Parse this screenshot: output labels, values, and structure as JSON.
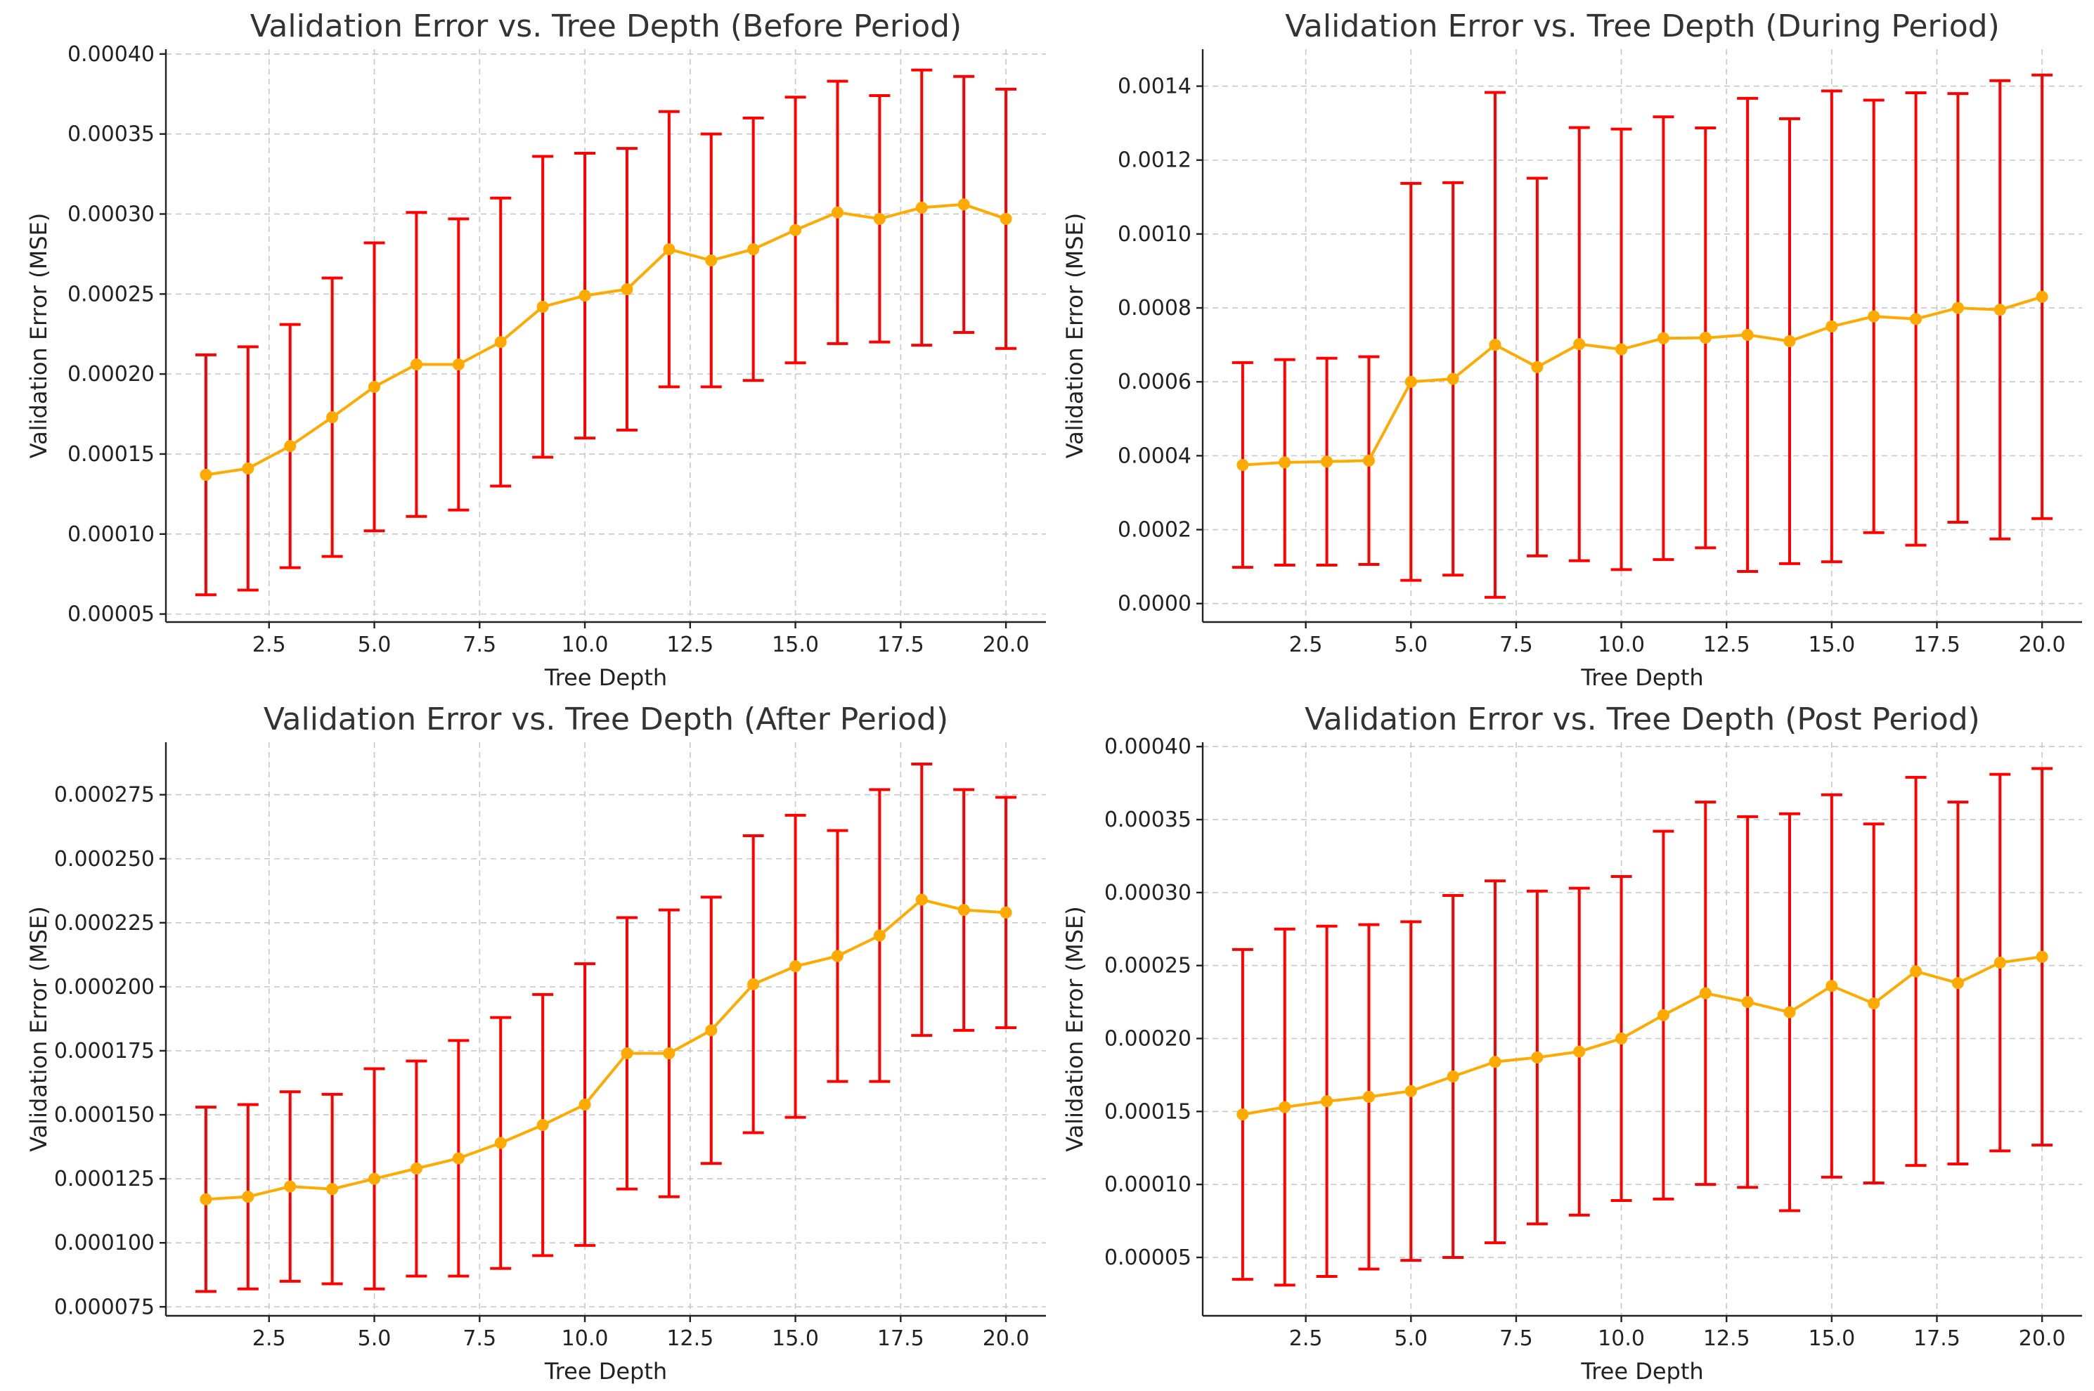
{
  "colors": {
    "line": "#ffaa00",
    "errorbar": "#ff0000",
    "grid": "#c8c8c8",
    "text": "#222222"
  },
  "chart_data": [
    {
      "type": "line",
      "title": "Validation Error vs. Tree Depth (Before Period)",
      "xlabel": "Tree Depth",
      "ylabel": "Validation Error (MSE)",
      "grid": true,
      "xlim": [
        0.05,
        20.95
      ],
      "ylim": [
        4.5e-05,
        0.000403
      ],
      "xticks": [
        2.5,
        5.0,
        7.5,
        10.0,
        12.5,
        15.0,
        17.5,
        20.0
      ],
      "xtick_labels": [
        "2.5",
        "5.0",
        "7.5",
        "10.0",
        "12.5",
        "15.0",
        "17.5",
        "20.0"
      ],
      "yticks": [
        5e-05,
        0.0001,
        0.00015,
        0.0002,
        0.00025,
        0.0003,
        0.00035,
        0.0004
      ],
      "ytick_labels": [
        "0.00005",
        "0.00010",
        "0.00015",
        "0.00020",
        "0.00025",
        "0.00030",
        "0.00035",
        "0.00040"
      ],
      "x": [
        1,
        2,
        3,
        4,
        5,
        6,
        7,
        8,
        9,
        10,
        11,
        12,
        13,
        14,
        15,
        16,
        17,
        18,
        19,
        20
      ],
      "values": [
        0.000137,
        0.000141,
        0.000155,
        0.000173,
        0.000192,
        0.000206,
        0.000206,
        0.00022,
        0.000242,
        0.000249,
        0.000253,
        0.000278,
        0.000271,
        0.000278,
        0.00029,
        0.000301,
        0.000297,
        0.000304,
        0.000306,
        0.000297
      ],
      "errors": [
        7.5e-05,
        7.6e-05,
        7.6e-05,
        8.7e-05,
        9e-05,
        9.5e-05,
        9.1e-05,
        9e-05,
        9.4e-05,
        8.9e-05,
        8.8e-05,
        8.6e-05,
        7.9e-05,
        8.2e-05,
        8.3e-05,
        8.2e-05,
        7.7e-05,
        8.6e-05,
        8e-05,
        8.1e-05
      ]
    },
    {
      "type": "line",
      "title": "Validation Error vs. Tree Depth (During Period)",
      "xlabel": "Tree Depth",
      "ylabel": "Validation Error (MSE)",
      "grid": true,
      "xlim": [
        0.05,
        20.95
      ],
      "ylim": [
        -5e-05,
        0.0015
      ],
      "xticks": [
        2.5,
        5.0,
        7.5,
        10.0,
        12.5,
        15.0,
        17.5,
        20.0
      ],
      "xtick_labels": [
        "2.5",
        "5.0",
        "7.5",
        "10.0",
        "12.5",
        "15.0",
        "17.5",
        "20.0"
      ],
      "yticks": [
        0.0,
        0.0002,
        0.0004,
        0.0006,
        0.0008,
        0.001,
        0.0012,
        0.0014
      ],
      "ytick_labels": [
        "0.0000",
        "0.0002",
        "0.0004",
        "0.0006",
        "0.0008",
        "0.0010",
        "0.0012",
        "0.0014"
      ],
      "x": [
        1,
        2,
        3,
        4,
        5,
        6,
        7,
        8,
        9,
        10,
        11,
        12,
        13,
        14,
        15,
        16,
        17,
        18,
        19,
        20
      ],
      "values": [
        0.000375,
        0.000382,
        0.000384,
        0.000387,
        0.0006,
        0.000608,
        0.0007,
        0.00064,
        0.000702,
        0.000688,
        0.000718,
        0.000719,
        0.000727,
        0.00071,
        0.00075,
        0.000777,
        0.00077,
        0.0008,
        0.000795,
        0.00083
      ],
      "errors": [
        0.000277,
        0.000278,
        0.00028,
        0.000281,
        0.000537,
        0.000531,
        0.000683,
        0.000511,
        0.000586,
        0.000596,
        0.000599,
        0.000568,
        0.00064,
        0.000602,
        0.000637,
        0.000585,
        0.000612,
        0.00058,
        0.00062,
        0.0006
      ]
    },
    {
      "type": "line",
      "title": "Validation Error vs. Tree Depth (After Period)",
      "xlabel": "Tree Depth",
      "ylabel": "Validation Error (MSE)",
      "grid": true,
      "xlim": [
        0.05,
        20.95
      ],
      "ylim": [
        7.15e-05,
        0.0002955
      ],
      "xticks": [
        2.5,
        5.0,
        7.5,
        10.0,
        12.5,
        15.0,
        17.5,
        20.0
      ],
      "xtick_labels": [
        "2.5",
        "5.0",
        "7.5",
        "10.0",
        "12.5",
        "15.0",
        "17.5",
        "20.0"
      ],
      "yticks": [
        7.5e-05,
        0.0001,
        0.000125,
        0.00015,
        0.000175,
        0.0002,
        0.000225,
        0.00025,
        0.000275
      ],
      "ytick_labels": [
        "0.000075",
        "0.000100",
        "0.000125",
        "0.000150",
        "0.000175",
        "0.000200",
        "0.000225",
        "0.000250",
        "0.000275"
      ],
      "x": [
        1,
        2,
        3,
        4,
        5,
        6,
        7,
        8,
        9,
        10,
        11,
        12,
        13,
        14,
        15,
        16,
        17,
        18,
        19,
        20
      ],
      "values": [
        0.000117,
        0.000118,
        0.000122,
        0.000121,
        0.000125,
        0.000129,
        0.000133,
        0.000139,
        0.000146,
        0.000154,
        0.000174,
        0.000174,
        0.000183,
        0.000201,
        0.000208,
        0.000212,
        0.00022,
        0.000234,
        0.00023,
        0.000229
      ],
      "errors": [
        3.6e-05,
        3.6e-05,
        3.7e-05,
        3.7e-05,
        4.3e-05,
        4.2e-05,
        4.6e-05,
        4.9e-05,
        5.1e-05,
        5.5e-05,
        5.3e-05,
        5.6e-05,
        5.2e-05,
        5.8e-05,
        5.9e-05,
        4.9e-05,
        5.7e-05,
        5.3e-05,
        4.7e-05,
        4.5e-05
      ]
    },
    {
      "type": "line",
      "title": "Validation Error vs. Tree Depth (Post Period)",
      "xlabel": "Tree Depth",
      "ylabel": "Validation Error (MSE)",
      "grid": true,
      "xlim": [
        0.05,
        20.95
      ],
      "ylim": [
        1e-05,
        0.000403
      ],
      "xticks": [
        2.5,
        5.0,
        7.5,
        10.0,
        12.5,
        15.0,
        17.5,
        20.0
      ],
      "xtick_labels": [
        "2.5",
        "5.0",
        "7.5",
        "10.0",
        "12.5",
        "15.0",
        "17.5",
        "20.0"
      ],
      "yticks": [
        5e-05,
        0.0001,
        0.00015,
        0.0002,
        0.00025,
        0.0003,
        0.00035,
        0.0004
      ],
      "ytick_labels": [
        "0.00005",
        "0.00010",
        "0.00015",
        "0.00020",
        "0.00025",
        "0.00030",
        "0.00035",
        "0.00040"
      ],
      "x": [
        1,
        2,
        3,
        4,
        5,
        6,
        7,
        8,
        9,
        10,
        11,
        12,
        13,
        14,
        15,
        16,
        17,
        18,
        19,
        20
      ],
      "values": [
        0.000148,
        0.000153,
        0.000157,
        0.00016,
        0.000164,
        0.000174,
        0.000184,
        0.000187,
        0.000191,
        0.0002,
        0.000216,
        0.000231,
        0.000225,
        0.000218,
        0.000236,
        0.000224,
        0.000246,
        0.000238,
        0.000252,
        0.000256
      ],
      "errors": [
        0.000113,
        0.000122,
        0.00012,
        0.000118,
        0.000116,
        0.000124,
        0.000124,
        0.000114,
        0.000112,
        0.000111,
        0.000126,
        0.000131,
        0.000127,
        0.000136,
        0.000131,
        0.000123,
        0.000133,
        0.000124,
        0.000129,
        0.000129
      ]
    }
  ]
}
